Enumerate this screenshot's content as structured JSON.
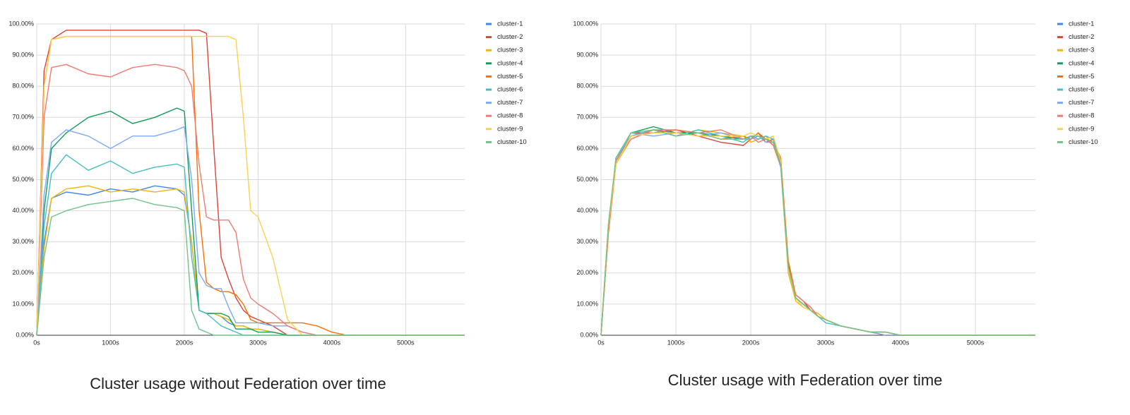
{
  "chart_data": [
    {
      "type": "line",
      "title": "Cluster usage without Federation over time",
      "x": [
        0,
        100,
        200,
        400,
        700,
        1000,
        1300,
        1600,
        1900,
        2000,
        2100,
        2200,
        2300,
        2400,
        2500,
        2600,
        2700,
        2800,
        2900,
        3000,
        3200,
        3400,
        3600,
        3800,
        4000,
        4200,
        5000,
        5800
      ],
      "xlim": [
        0,
        5800
      ],
      "ylim": [
        0,
        100
      ],
      "grid": true,
      "legend": "right",
      "xticks": [
        {
          "value": 0,
          "label": "0s"
        },
        {
          "value": 1000,
          "label": "1000s"
        },
        {
          "value": 2000,
          "label": "2000s"
        },
        {
          "value": 3000,
          "label": "3000s"
        },
        {
          "value": 4000,
          "label": "4000s"
        },
        {
          "value": 5000,
          "label": "5000s"
        }
      ],
      "yticks": [
        {
          "value": 0,
          "label": "0.00%"
        },
        {
          "value": 10,
          "label": "10.00%"
        },
        {
          "value": 20,
          "label": "20.00%"
        },
        {
          "value": 30,
          "label": "30.00%"
        },
        {
          "value": 40,
          "label": "40.00%"
        },
        {
          "value": 50,
          "label": "50.00%"
        },
        {
          "value": 60,
          "label": "60.00%"
        },
        {
          "value": 70,
          "label": "70.00%"
        },
        {
          "value": 80,
          "label": "80.00%"
        },
        {
          "value": 90,
          "label": "90.00%"
        },
        {
          "value": 100,
          "label": "100.00%"
        }
      ],
      "series": [
        {
          "name": "cluster-1",
          "color": "#4285f4",
          "values": [
            0,
            30,
            44,
            46,
            45,
            47,
            46,
            48,
            47,
            45,
            30,
            8,
            7,
            7,
            6,
            4,
            3,
            3,
            2,
            2,
            1,
            0,
            0,
            0,
            0,
            0,
            0,
            0
          ]
        },
        {
          "name": "cluster-2",
          "color": "#db4437",
          "values": [
            0,
            85,
            95,
            98,
            98,
            98,
            98,
            98,
            98,
            98,
            98,
            98,
            97,
            60,
            25,
            18,
            12,
            8,
            6,
            5,
            3,
            0,
            0,
            0,
            0,
            0,
            0,
            0
          ]
        },
        {
          "name": "cluster-3",
          "color": "#f4b400",
          "values": [
            0,
            28,
            44,
            47,
            48,
            46,
            47,
            46,
            47,
            46,
            30,
            8,
            7,
            7,
            6,
            5,
            3,
            3,
            2,
            2,
            1,
            0,
            0,
            0,
            0,
            0,
            0,
            0
          ]
        },
        {
          "name": "cluster-4",
          "color": "#0f9d58",
          "values": [
            0,
            40,
            60,
            65,
            70,
            72,
            68,
            70,
            73,
            72,
            40,
            8,
            7,
            7,
            7,
            6,
            2,
            2,
            2,
            1,
            1,
            0,
            0,
            0,
            0,
            0,
            0,
            0
          ]
        },
        {
          "name": "cluster-5",
          "color": "#ff6d01",
          "values": [
            0,
            80,
            95,
            96,
            96,
            96,
            96,
            96,
            96,
            96,
            96,
            40,
            17,
            15,
            14,
            14,
            13,
            10,
            5,
            4,
            4,
            4,
            4,
            3,
            1,
            0,
            0,
            0
          ]
        },
        {
          "name": "cluster-6",
          "color": "#46bdc6",
          "values": [
            0,
            35,
            52,
            58,
            53,
            56,
            52,
            54,
            55,
            54,
            25,
            8,
            7,
            5,
            3,
            2,
            1,
            0,
            0,
            0,
            0,
            0,
            0,
            0,
            0,
            0,
            0,
            0
          ]
        },
        {
          "name": "cluster-7",
          "color": "#7baaf7",
          "values": [
            0,
            45,
            62,
            66,
            64,
            60,
            64,
            64,
            66,
            67,
            50,
            20,
            16,
            15,
            15,
            9,
            4,
            4,
            4,
            4,
            3,
            3,
            1,
            0,
            0,
            0,
            0,
            0
          ]
        },
        {
          "name": "cluster-8",
          "color": "#f07b72",
          "values": [
            0,
            70,
            86,
            87,
            84,
            83,
            86,
            87,
            86,
            85,
            80,
            55,
            38,
            37,
            37,
            37,
            33,
            18,
            12,
            10,
            7,
            3,
            1,
            0,
            0,
            0,
            0,
            0
          ]
        },
        {
          "name": "cluster-9",
          "color": "#fcd04f",
          "values": [
            0,
            80,
            95,
            96,
            96,
            96,
            96,
            96,
            96,
            96,
            96,
            96,
            96,
            96,
            96,
            96,
            95,
            70,
            40,
            38,
            25,
            5,
            0,
            0,
            0,
            0,
            0,
            0
          ]
        },
        {
          "name": "cluster-10",
          "color": "#71c287",
          "values": [
            0,
            25,
            38,
            40,
            42,
            43,
            44,
            42,
            41,
            40,
            8,
            2,
            1,
            0,
            0,
            0,
            0,
            0,
            0,
            0,
            0,
            0,
            0,
            0,
            0,
            0,
            0,
            0
          ]
        }
      ]
    },
    {
      "type": "line",
      "title": "Cluster usage with Federation over time",
      "x": [
        0,
        100,
        200,
        400,
        700,
        1000,
        1300,
        1600,
        1900,
        2000,
        2100,
        2200,
        2300,
        2400,
        2500,
        2600,
        2700,
        2800,
        2900,
        3000,
        3200,
        3400,
        3600,
        3800,
        4000,
        4200,
        5000,
        5800
      ],
      "xlim": [
        0,
        5800
      ],
      "ylim": [
        0,
        100
      ],
      "grid": true,
      "legend": "right",
      "xticks": [
        {
          "value": 0,
          "label": "0s"
        },
        {
          "value": 1000,
          "label": "1000s"
        },
        {
          "value": 2000,
          "label": "2000s"
        },
        {
          "value": 3000,
          "label": "3000s"
        },
        {
          "value": 4000,
          "label": "4000s"
        },
        {
          "value": 5000,
          "label": "5000s"
        }
      ],
      "yticks": [
        {
          "value": 0,
          "label": "0.00%"
        },
        {
          "value": 10,
          "label": "10.00%"
        },
        {
          "value": 20,
          "label": "20.00%"
        },
        {
          "value": 30,
          "label": "30.00%"
        },
        {
          "value": 40,
          "label": "40.00%"
        },
        {
          "value": 50,
          "label": "50.00%"
        },
        {
          "value": 60,
          "label": "60.00%"
        },
        {
          "value": 70,
          "label": "70.00%"
        },
        {
          "value": 80,
          "label": "80.00%"
        },
        {
          "value": 90,
          "label": "90.00%"
        },
        {
          "value": 100,
          "label": "100.00%"
        }
      ],
      "series": [
        {
          "name": "cluster-1",
          "color": "#4285f4",
          "values": [
            0,
            35,
            56,
            64,
            66,
            65,
            65,
            64,
            63,
            64,
            64,
            63,
            62,
            55,
            22,
            12,
            10,
            8,
            6,
            5,
            3,
            2,
            1,
            1,
            0,
            0,
            0,
            0
          ]
        },
        {
          "name": "cluster-2",
          "color": "#db4437",
          "values": [
            0,
            34,
            57,
            65,
            65,
            66,
            64,
            62,
            61,
            63,
            65,
            62,
            63,
            56,
            23,
            13,
            11,
            8,
            6,
            5,
            3,
            2,
            1,
            0,
            0,
            0,
            0,
            0
          ]
        },
        {
          "name": "cluster-3",
          "color": "#f4b400",
          "values": [
            0,
            36,
            55,
            63,
            66,
            64,
            66,
            65,
            64,
            62,
            63,
            64,
            61,
            54,
            20,
            11,
            9,
            8,
            7,
            5,
            3,
            2,
            1,
            1,
            0,
            0,
            0,
            0
          ]
        },
        {
          "name": "cluster-4",
          "color": "#0f9d58",
          "values": [
            0,
            35,
            56,
            65,
            67,
            65,
            65,
            64,
            63,
            64,
            64,
            63,
            62,
            55,
            22,
            12,
            10,
            8,
            6,
            5,
            3,
            2,
            1,
            1,
            0,
            0,
            0,
            0
          ]
        },
        {
          "name": "cluster-5",
          "color": "#ff6d01",
          "values": [
            0,
            33,
            55,
            64,
            65,
            66,
            65,
            63,
            64,
            63,
            65,
            63,
            62,
            57,
            24,
            13,
            11,
            9,
            6,
            5,
            3,
            2,
            1,
            0,
            0,
            0,
            0,
            0
          ]
        },
        {
          "name": "cluster-6",
          "color": "#46bdc6",
          "values": [
            0,
            35,
            57,
            64,
            66,
            64,
            66,
            64,
            62,
            64,
            63,
            64,
            63,
            55,
            22,
            12,
            10,
            8,
            6,
            4,
            3,
            2,
            1,
            1,
            0,
            0,
            0,
            0
          ]
        },
        {
          "name": "cluster-7",
          "color": "#7baaf7",
          "values": [
            0,
            36,
            56,
            65,
            64,
            65,
            64,
            65,
            63,
            63,
            64,
            62,
            62,
            54,
            21,
            12,
            10,
            8,
            6,
            5,
            3,
            2,
            1,
            0,
            0,
            0,
            0,
            0
          ]
        },
        {
          "name": "cluster-8",
          "color": "#f07b72",
          "values": [
            0,
            34,
            56,
            63,
            66,
            66,
            65,
            66,
            63,
            64,
            62,
            63,
            61,
            55,
            22,
            13,
            11,
            9,
            6,
            5,
            3,
            2,
            1,
            1,
            0,
            0,
            0,
            0
          ]
        },
        {
          "name": "cluster-9",
          "color": "#fcd04f",
          "values": [
            0,
            35,
            55,
            64,
            65,
            65,
            64,
            64,
            64,
            65,
            64,
            63,
            64,
            56,
            21,
            12,
            9,
            8,
            6,
            5,
            3,
            2,
            1,
            1,
            0,
            0,
            0,
            0
          ]
        },
        {
          "name": "cluster-10",
          "color": "#71c287",
          "values": [
            0,
            36,
            57,
            65,
            66,
            64,
            65,
            63,
            63,
            64,
            64,
            63,
            62,
            55,
            22,
            12,
            10,
            8,
            6,
            5,
            3,
            2,
            1,
            1,
            0,
            0,
            0,
            0
          ]
        }
      ]
    }
  ]
}
